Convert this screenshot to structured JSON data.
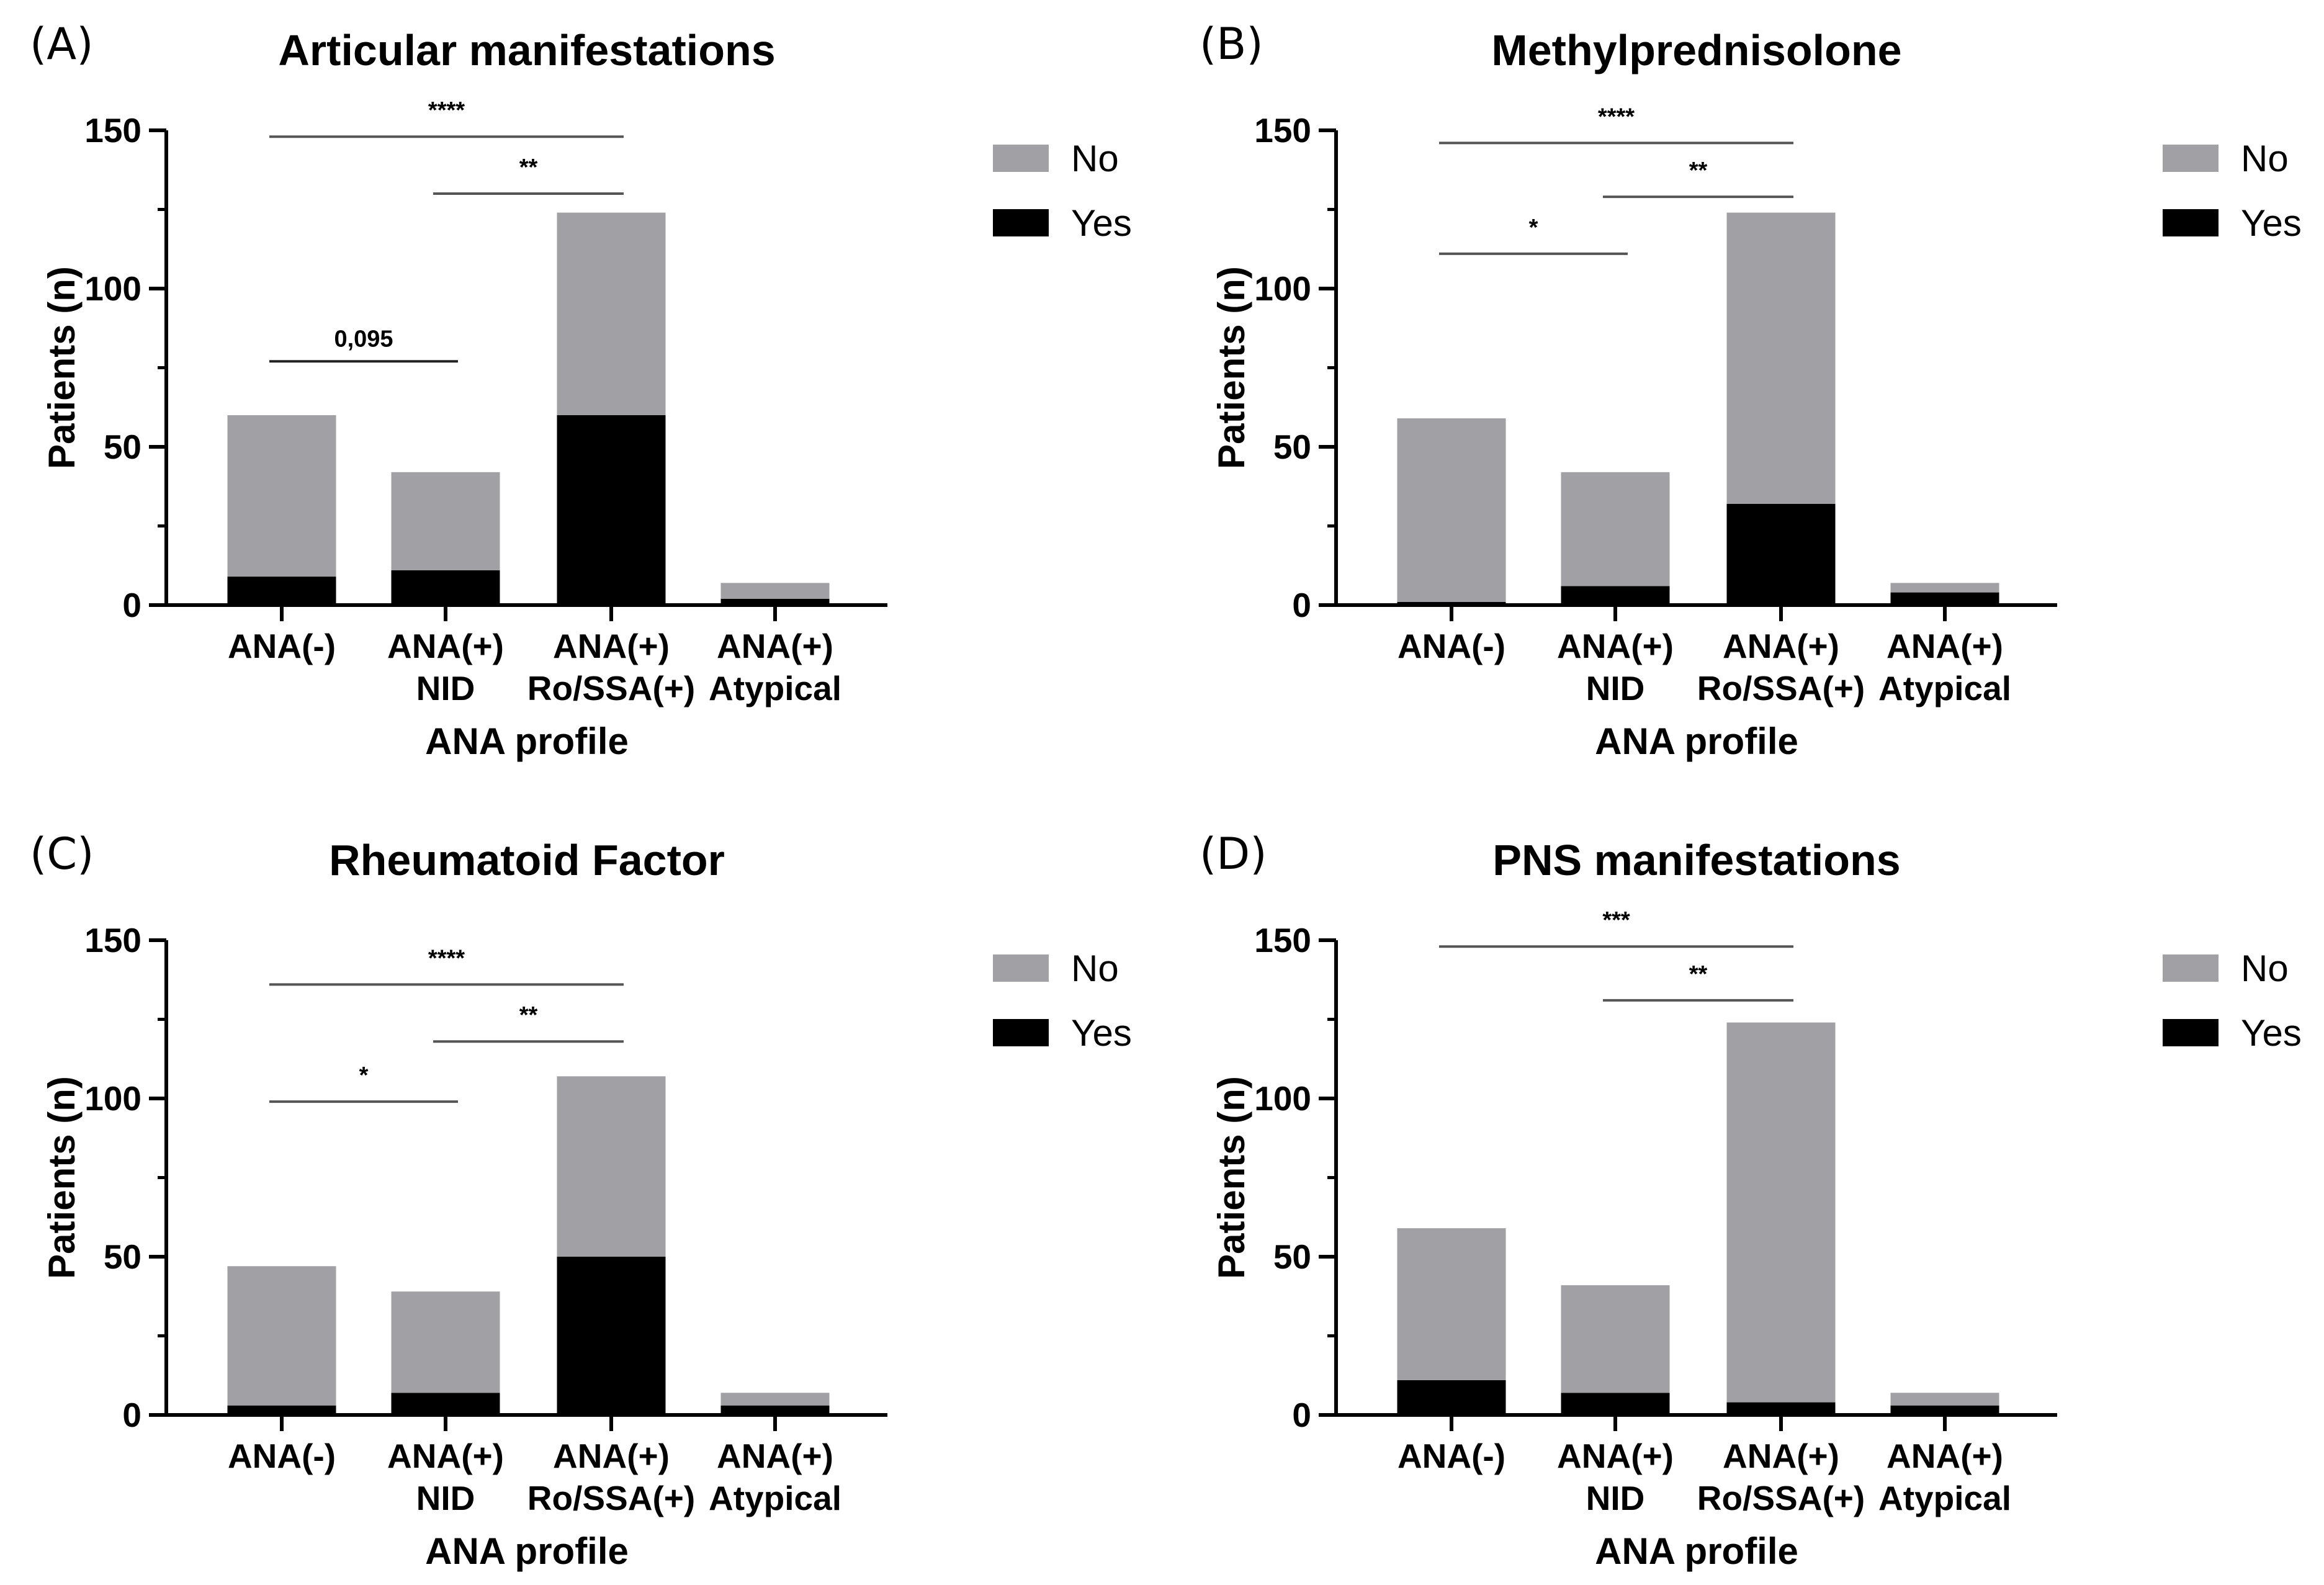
{
  "chart_data": [
    {
      "type": "bar",
      "stacked": true,
      "panel": "(A)",
      "title": "Articular manifestations",
      "xlabel": "ANA profile",
      "ylabel": "Patients (n)",
      "ylim": [
        0,
        150
      ],
      "yticks": [
        0,
        50,
        100,
        150
      ],
      "categories": [
        [
          "ANA(-)"
        ],
        [
          "ANA(+)",
          "NID"
        ],
        [
          "ANA(+)",
          "Ro/SSA(+)"
        ],
        [
          "ANA(+)",
          "Atypical"
        ]
      ],
      "series": [
        {
          "name": "Yes",
          "color": "#000000",
          "values": [
            9,
            11,
            60,
            2
          ]
        },
        {
          "name": "No",
          "color": "#a0a0a5",
          "values": [
            51,
            31,
            64,
            5
          ]
        }
      ],
      "legend": [
        "No",
        "Yes"
      ],
      "comparisons": [
        {
          "from": 0,
          "to": 2,
          "label": "****",
          "y": 148
        },
        {
          "from": 1,
          "to": 2,
          "label": "**",
          "y": 130
        },
        {
          "from": 0,
          "to": 1,
          "label": "0,095",
          "y": 77
        }
      ]
    },
    {
      "type": "bar",
      "stacked": true,
      "panel": "(B)",
      "title": "Methylprednisolone",
      "xlabel": "ANA profile",
      "ylabel": "Patients (n)",
      "ylim": [
        0,
        150
      ],
      "yticks": [
        0,
        50,
        100,
        150
      ],
      "categories": [
        [
          "ANA(-)"
        ],
        [
          "ANA(+)",
          "NID"
        ],
        [
          "ANA(+)",
          "Ro/SSA(+)"
        ],
        [
          "ANA(+)",
          "Atypical"
        ]
      ],
      "series": [
        {
          "name": "Yes",
          "color": "#000000",
          "values": [
            1,
            6,
            32,
            4
          ]
        },
        {
          "name": "No",
          "color": "#a0a0a5",
          "values": [
            58,
            36,
            92,
            3
          ]
        }
      ],
      "legend": [
        "No",
        "Yes"
      ],
      "comparisons": [
        {
          "from": 0,
          "to": 2,
          "label": "****",
          "y": 146
        },
        {
          "from": 1,
          "to": 2,
          "label": "**",
          "y": 129
        },
        {
          "from": 0,
          "to": 1,
          "label": "*",
          "y": 111
        }
      ]
    },
    {
      "type": "bar",
      "stacked": true,
      "panel": "(C)",
      "title": "Rheumatoid Factor",
      "xlabel": "ANA profile",
      "ylabel": "Patients (n)",
      "ylim": [
        0,
        150
      ],
      "yticks": [
        0,
        50,
        100,
        150
      ],
      "categories": [
        [
          "ANA(-)"
        ],
        [
          "ANA(+)",
          "NID"
        ],
        [
          "ANA(+)",
          "Ro/SSA(+)"
        ],
        [
          "ANA(+)",
          "Atypical"
        ]
      ],
      "series": [
        {
          "name": "Yes",
          "color": "#000000",
          "values": [
            3,
            7,
            50,
            3
          ]
        },
        {
          "name": "No",
          "color": "#a0a0a5",
          "values": [
            44,
            32,
            57,
            4
          ]
        }
      ],
      "legend": [
        "No",
        "Yes"
      ],
      "comparisons": [
        {
          "from": 0,
          "to": 2,
          "label": "****",
          "y": 136
        },
        {
          "from": 1,
          "to": 2,
          "label": "**",
          "y": 118
        },
        {
          "from": 0,
          "to": 1,
          "label": "*",
          "y": 99
        }
      ]
    },
    {
      "type": "bar",
      "stacked": true,
      "panel": "(D)",
      "title": "PNS manifestations",
      "xlabel": "ANA profile",
      "ylabel": "Patients (n)",
      "ylim": [
        0,
        150
      ],
      "yticks": [
        0,
        50,
        100,
        150
      ],
      "categories": [
        [
          "ANA(-)"
        ],
        [
          "ANA(+)",
          "NID"
        ],
        [
          "ANA(+)",
          "Ro/SSA(+)"
        ],
        [
          "ANA(+)",
          "Atypical"
        ]
      ],
      "series": [
        {
          "name": "Yes",
          "color": "#000000",
          "values": [
            11,
            7,
            4,
            3
          ]
        },
        {
          "name": "No",
          "color": "#a0a0a5",
          "values": [
            48,
            34,
            120,
            4
          ]
        }
      ],
      "legend": [
        "No",
        "Yes"
      ],
      "comparisons": [
        {
          "from": 0,
          "to": 2,
          "label": "***",
          "y": 148
        },
        {
          "from": 1,
          "to": 2,
          "label": "**",
          "y": 131
        }
      ]
    }
  ]
}
